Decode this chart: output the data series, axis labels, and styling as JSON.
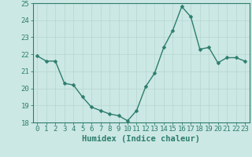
{
  "x": [
    0,
    1,
    2,
    3,
    4,
    5,
    6,
    7,
    8,
    9,
    10,
    11,
    12,
    13,
    14,
    15,
    16,
    17,
    18,
    19,
    20,
    21,
    22,
    23
  ],
  "y": [
    21.9,
    21.6,
    21.6,
    20.3,
    20.2,
    19.5,
    18.9,
    18.7,
    18.5,
    18.4,
    18.1,
    18.7,
    20.1,
    20.9,
    22.4,
    23.4,
    24.8,
    24.2,
    22.3,
    22.4,
    21.5,
    21.8,
    21.8,
    21.6
  ],
  "line_color": "#2d7d6e",
  "marker": "D",
  "marker_size": 2.5,
  "bg_color": "#cce8e4",
  "grid_color": "#b8d8d4",
  "xlabel": "Humidex (Indice chaleur)",
  "ylim": [
    18,
    25
  ],
  "xlim": [
    -0.5,
    23.5
  ],
  "yticks": [
    18,
    19,
    20,
    21,
    22,
    23,
    24,
    25
  ],
  "xticks": [
    0,
    1,
    2,
    3,
    4,
    5,
    6,
    7,
    8,
    9,
    10,
    11,
    12,
    13,
    14,
    15,
    16,
    17,
    18,
    19,
    20,
    21,
    22,
    23
  ],
  "tick_label_size": 6.5,
  "xlabel_size": 7.5,
  "line_width": 1.0,
  "axis_color": "#2d7d6e",
  "spine_color": "#2d7d6e"
}
